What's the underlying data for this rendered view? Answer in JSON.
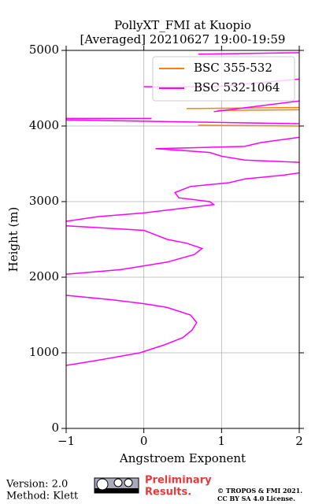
{
  "chart_data": {
    "type": "line",
    "title": [
      "PollyXT_FMI at Kuopio",
      "[Averaged] 20210627 19:00-19:59"
    ],
    "xlabel": "Angstroem Exponent",
    "ylabel": "Height (m)",
    "xlim": [
      -1,
      2
    ],
    "ylim": [
      0,
      5000
    ],
    "xticks": [
      {
        "value": -1,
        "label": "−1"
      },
      0,
      1,
      2
    ],
    "yticks": [
      0,
      1000,
      2000,
      3000,
      4000,
      5000
    ],
    "grid": true,
    "legend": "upper right",
    "series": [
      {
        "name": "BSC 355-532",
        "color": "#ff7f0e",
        "x": [
          0.7,
          2.0,
          null,
          0.55,
          2.0,
          null,
          0.95,
          2.0
        ],
        "values": [
          4010,
          4000,
          null,
          4230,
          4245,
          null,
          4205,
          4215
        ]
      },
      {
        "name": "BSC 532-1064",
        "color": "#ff00ff",
        "x": [
          -1.0,
          -0.6,
          -0.05,
          0.25,
          0.5,
          0.62,
          0.68,
          0.6,
          0.3,
          0.0,
          -0.4,
          -1.0,
          null,
          -1.0,
          -0.3,
          0.0,
          0.3,
          0.65,
          0.75,
          0.55,
          0.3,
          0.15,
          0.0,
          -1.0,
          null,
          -1.0,
          -0.6,
          0.0,
          0.4,
          0.9,
          0.85,
          0.45,
          0.4,
          0.6,
          1.1,
          1.3,
          1.8,
          2.0,
          null,
          2.0,
          1.3,
          1.0,
          0.85,
          0.15,
          1.3,
          1.5,
          2.0,
          null,
          -1.0,
          0.1,
          null,
          -1.0,
          2.0,
          null,
          0.9,
          2.0,
          null,
          0.0,
          0.9,
          2.0,
          null,
          0.7,
          2.0
        ],
        "values": [
          833,
          900,
          1000,
          1100,
          1200,
          1300,
          1400,
          1500,
          1600,
          1650,
          1700,
          1760,
          null,
          2040,
          2100,
          2150,
          2200,
          2300,
          2380,
          2450,
          2500,
          2560,
          2620,
          2680,
          null,
          2740,
          2800,
          2850,
          2900,
          2960,
          3000,
          3050,
          3120,
          3200,
          3250,
          3300,
          3350,
          3380,
          null,
          3520,
          3550,
          3600,
          3650,
          3700,
          3730,
          3780,
          3850,
          null,
          4100,
          4100,
          null,
          4080,
          4030,
          null,
          4190,
          4330,
          null,
          4520,
          4520,
          4620,
          null,
          4950,
          4970
        ]
      }
    ],
    "notes": [
      "Version: 2.0",
      "Method: Klett"
    ],
    "preliminary": [
      "Preliminary",
      "Results."
    ],
    "license": [
      "© TROPOS & FMI 2021.",
      "CC BY SA 4.0 License."
    ]
  }
}
